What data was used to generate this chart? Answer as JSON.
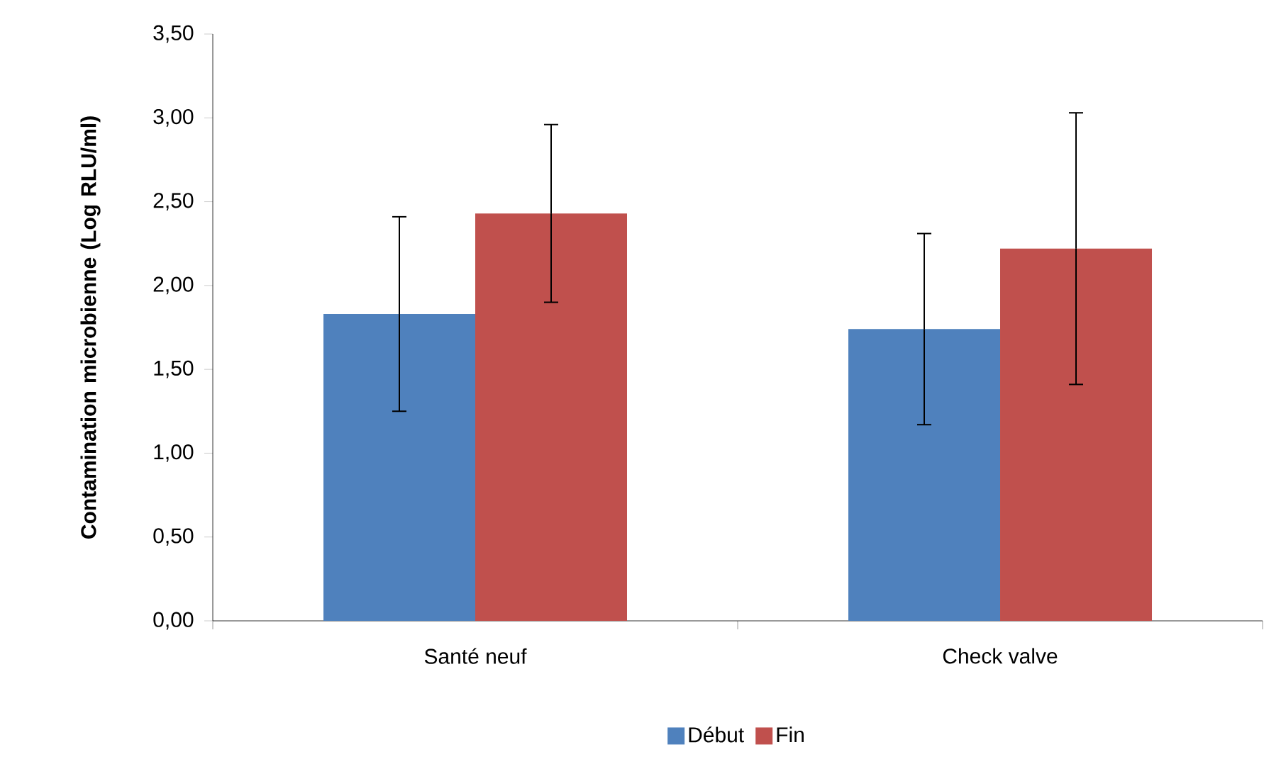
{
  "chart_data": {
    "type": "bar",
    "ylabel": "Contamination microbienne (Log RLU/ml)",
    "categories": [
      "Santé neuf",
      "Check valve"
    ],
    "series": [
      {
        "name": "Début",
        "color": "#4f81bd",
        "values": [
          1.83,
          1.74
        ],
        "errors": [
          0.58,
          0.57
        ]
      },
      {
        "name": "Fin",
        "color": "#c0504d",
        "values": [
          2.43,
          2.22
        ],
        "errors": [
          0.53,
          0.81
        ]
      }
    ],
    "ylim": [
      0,
      3.5
    ],
    "yticks": [
      {
        "value": 0,
        "label": "0,00"
      },
      {
        "value": 0.5,
        "label": "0,50"
      },
      {
        "value": 1,
        "label": "1,00"
      },
      {
        "value": 1.5,
        "label": "1,50"
      },
      {
        "value": 2,
        "label": "2,00"
      },
      {
        "value": 2.5,
        "label": "2,50"
      },
      {
        "value": 3,
        "label": "3,00"
      },
      {
        "value": 3.5,
        "label": "3,50"
      }
    ],
    "grid": false,
    "legend": "bottom"
  }
}
